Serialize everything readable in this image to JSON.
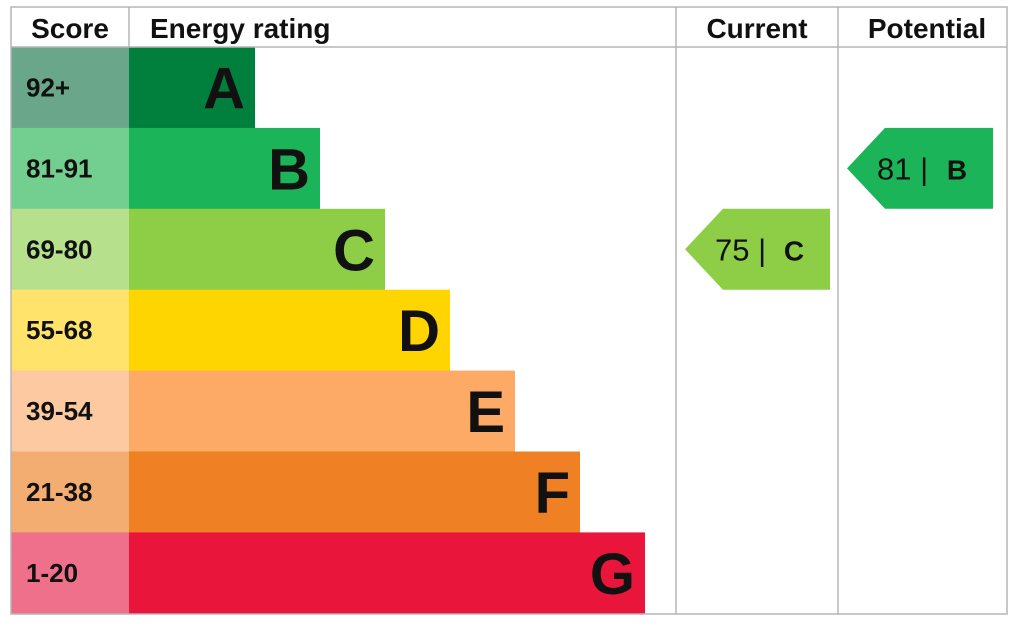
{
  "chart_data": {
    "type": "bar",
    "headers": {
      "score": "Score",
      "rating": "Energy rating",
      "current": "Current",
      "potential": "Potential"
    },
    "bands": [
      {
        "letter": "A",
        "range": "92+",
        "color": "#007f3d",
        "score_color": "#6aa68a"
      },
      {
        "letter": "B",
        "range": "81-91",
        "color": "#1cb459",
        "score_color": "#72cf8f"
      },
      {
        "letter": "C",
        "range": "69-80",
        "color": "#8dce46",
        "score_color": "#b6e08c"
      },
      {
        "letter": "D",
        "range": "55-68",
        "color": "#ffd500",
        "score_color": "#ffe36b"
      },
      {
        "letter": "E",
        "range": "39-54",
        "color": "#fcaa65",
        "score_color": "#fcc9a0"
      },
      {
        "letter": "F",
        "range": "21-38",
        "color": "#ef8023",
        "score_color": "#f3ad70"
      },
      {
        "letter": "G",
        "range": "1-20",
        "color": "#e9153b",
        "score_color": "#ee708a"
      }
    ],
    "current": {
      "value": 75,
      "letter": "C",
      "label": "75 |",
      "color": "#8dce46"
    },
    "potential": {
      "value": 81,
      "letter": "B",
      "label": "81 |",
      "color": "#1cb459"
    }
  }
}
